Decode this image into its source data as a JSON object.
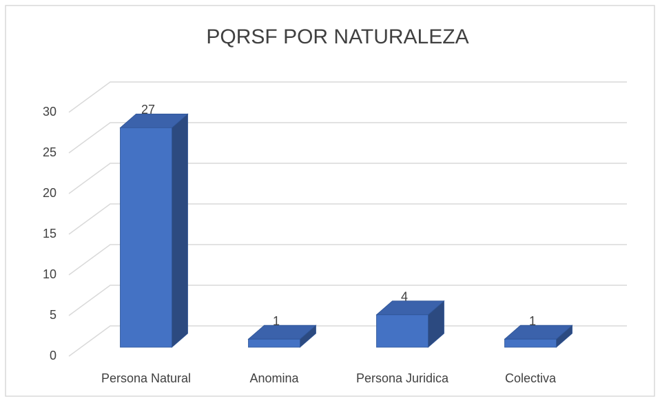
{
  "chart_data": {
    "type": "bar3d",
    "title": "PQRSF POR NATURALEZA",
    "categories": [
      "Persona Natural",
      "Anomina",
      "Persona Juridica",
      "Colectiva"
    ],
    "values": [
      27,
      1,
      4,
      1
    ],
    "color": "#4472c4",
    "ylim": [
      0,
      30
    ],
    "yticks": [
      0,
      5,
      10,
      15,
      20,
      25,
      30
    ],
    "grid": true
  }
}
